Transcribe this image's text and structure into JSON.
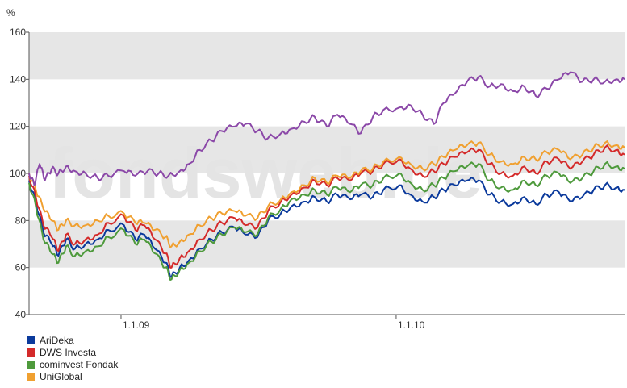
{
  "chart_data": {
    "type": "line",
    "ylabel": "%",
    "ylim": [
      40,
      160
    ],
    "yticks": [
      40,
      60,
      80,
      100,
      120,
      140,
      160
    ],
    "xlim": [
      "2008-09-01",
      "2010-10-31"
    ],
    "xticks": [
      {
        "date": "2009-01-01",
        "label": "1.1.09"
      },
      {
        "date": "2010-01-01",
        "label": "1.1.10"
      }
    ],
    "watermark": "fondsweb.de",
    "colors": {
      "grid_band": "#e6e6e6",
      "purple": "#8b48a8"
    },
    "series": [
      {
        "name": "AriDeka",
        "color": "#0b3a9c",
        "points": [
          [
            "2008-09-01",
            97
          ],
          [
            "2008-09-10",
            88
          ],
          [
            "2008-09-20",
            75
          ],
          [
            "2008-10-01",
            70
          ],
          [
            "2008-10-10",
            65
          ],
          [
            "2008-10-20",
            72
          ],
          [
            "2008-11-01",
            68
          ],
          [
            "2008-11-15",
            70
          ],
          [
            "2008-12-01",
            72
          ],
          [
            "2008-12-15",
            76
          ],
          [
            "2009-01-05",
            78
          ],
          [
            "2009-01-20",
            72
          ],
          [
            "2009-02-01",
            74
          ],
          [
            "2009-02-15",
            68
          ],
          [
            "2009-03-01",
            62
          ],
          [
            "2009-03-09",
            56
          ],
          [
            "2009-03-20",
            60
          ],
          [
            "2009-04-01",
            63
          ],
          [
            "2009-04-15",
            68
          ],
          [
            "2009-05-01",
            72
          ],
          [
            "2009-05-15",
            75
          ],
          [
            "2009-06-01",
            77
          ],
          [
            "2009-06-15",
            74
          ],
          [
            "2009-07-01",
            73
          ],
          [
            "2009-07-15",
            80
          ],
          [
            "2009-08-01",
            83
          ],
          [
            "2009-08-15",
            86
          ],
          [
            "2009-09-01",
            88
          ],
          [
            "2009-09-15",
            90
          ],
          [
            "2009-10-01",
            88
          ],
          [
            "2009-10-15",
            91
          ],
          [
            "2009-11-01",
            89
          ],
          [
            "2009-11-15",
            91
          ],
          [
            "2009-12-01",
            90
          ],
          [
            "2009-12-15",
            93
          ],
          [
            "2010-01-05",
            95
          ],
          [
            "2010-01-20",
            91
          ],
          [
            "2010-02-05",
            88
          ],
          [
            "2010-02-20",
            90
          ],
          [
            "2010-03-05",
            93
          ],
          [
            "2010-03-20",
            95
          ],
          [
            "2010-04-05",
            97
          ],
          [
            "2010-04-20",
            97
          ],
          [
            "2010-05-05",
            91
          ],
          [
            "2010-05-20",
            88
          ],
          [
            "2010-06-05",
            87
          ],
          [
            "2010-06-20",
            90
          ],
          [
            "2010-07-05",
            87
          ],
          [
            "2010-07-20",
            91
          ],
          [
            "2010-08-05",
            92
          ],
          [
            "2010-08-20",
            88
          ],
          [
            "2010-09-05",
            90
          ],
          [
            "2010-09-20",
            93
          ],
          [
            "2010-10-05",
            95
          ],
          [
            "2010-10-20",
            94
          ],
          [
            "2010-10-31",
            93
          ]
        ]
      },
      {
        "name": "DWS Investa",
        "color": "#d42a2a",
        "points": [
          [
            "2008-09-01",
            99
          ],
          [
            "2008-09-10",
            90
          ],
          [
            "2008-09-20",
            78
          ],
          [
            "2008-10-01",
            73
          ],
          [
            "2008-10-10",
            67
          ],
          [
            "2008-10-20",
            74
          ],
          [
            "2008-11-01",
            70
          ],
          [
            "2008-11-15",
            72
          ],
          [
            "2008-12-01",
            74
          ],
          [
            "2008-12-15",
            79
          ],
          [
            "2009-01-05",
            82
          ],
          [
            "2009-01-20",
            76
          ],
          [
            "2009-02-01",
            78
          ],
          [
            "2009-02-15",
            72
          ],
          [
            "2009-03-01",
            66
          ],
          [
            "2009-03-09",
            60
          ],
          [
            "2009-03-20",
            64
          ],
          [
            "2009-04-01",
            67
          ],
          [
            "2009-04-15",
            72
          ],
          [
            "2009-05-01",
            76
          ],
          [
            "2009-05-15",
            79
          ],
          [
            "2009-06-01",
            81
          ],
          [
            "2009-06-15",
            78
          ],
          [
            "2009-07-01",
            77
          ],
          [
            "2009-07-15",
            84
          ],
          [
            "2009-08-01",
            88
          ],
          [
            "2009-08-15",
            91
          ],
          [
            "2009-09-01",
            94
          ],
          [
            "2009-09-15",
            97
          ],
          [
            "2009-10-01",
            95
          ],
          [
            "2009-10-15",
            98
          ],
          [
            "2009-11-01",
            97
          ],
          [
            "2009-11-15",
            100
          ],
          [
            "2009-12-01",
            101
          ],
          [
            "2009-12-15",
            104
          ],
          [
            "2010-01-05",
            106
          ],
          [
            "2010-01-20",
            102
          ],
          [
            "2010-02-05",
            99
          ],
          [
            "2010-02-20",
            101
          ],
          [
            "2010-03-05",
            104
          ],
          [
            "2010-03-20",
            107
          ],
          [
            "2010-04-05",
            109
          ],
          [
            "2010-04-20",
            110
          ],
          [
            "2010-05-05",
            104
          ],
          [
            "2010-05-20",
            100
          ],
          [
            "2010-06-05",
            99
          ],
          [
            "2010-06-20",
            103
          ],
          [
            "2010-07-05",
            100
          ],
          [
            "2010-07-20",
            105
          ],
          [
            "2010-08-05",
            106
          ],
          [
            "2010-08-20",
            102
          ],
          [
            "2010-09-05",
            105
          ],
          [
            "2010-09-20",
            108
          ],
          [
            "2010-10-05",
            111
          ],
          [
            "2010-10-20",
            110
          ],
          [
            "2010-10-31",
            108
          ]
        ]
      },
      {
        "name": "cominvest Fondak",
        "color": "#4e9a3c",
        "points": [
          [
            "2008-09-01",
            96
          ],
          [
            "2008-09-10",
            86
          ],
          [
            "2008-09-20",
            72
          ],
          [
            "2008-10-01",
            66
          ],
          [
            "2008-10-10",
            62
          ],
          [
            "2008-10-20",
            69
          ],
          [
            "2008-11-01",
            65
          ],
          [
            "2008-11-15",
            67
          ],
          [
            "2008-12-01",
            69
          ],
          [
            "2008-12-15",
            73
          ],
          [
            "2009-01-05",
            76
          ],
          [
            "2009-01-20",
            70
          ],
          [
            "2009-02-01",
            72
          ],
          [
            "2009-02-15",
            66
          ],
          [
            "2009-03-01",
            60
          ],
          [
            "2009-03-09",
            55
          ],
          [
            "2009-03-20",
            59
          ],
          [
            "2009-04-01",
            62
          ],
          [
            "2009-04-15",
            67
          ],
          [
            "2009-05-01",
            71
          ],
          [
            "2009-05-15",
            74
          ],
          [
            "2009-06-01",
            77
          ],
          [
            "2009-06-15",
            75
          ],
          [
            "2009-07-01",
            74
          ],
          [
            "2009-07-15",
            81
          ],
          [
            "2009-08-01",
            85
          ],
          [
            "2009-08-15",
            89
          ],
          [
            "2009-09-01",
            91
          ],
          [
            "2009-09-15",
            93
          ],
          [
            "2009-10-01",
            91
          ],
          [
            "2009-10-15",
            94
          ],
          [
            "2009-11-01",
            92
          ],
          [
            "2009-11-15",
            95
          ],
          [
            "2009-12-01",
            95
          ],
          [
            "2009-12-15",
            98
          ],
          [
            "2010-01-05",
            100
          ],
          [
            "2010-01-20",
            96
          ],
          [
            "2010-02-05",
            93
          ],
          [
            "2010-02-20",
            95
          ],
          [
            "2010-03-05",
            98
          ],
          [
            "2010-03-20",
            101
          ],
          [
            "2010-04-05",
            103
          ],
          [
            "2010-04-20",
            104
          ],
          [
            "2010-05-05",
            97
          ],
          [
            "2010-05-20",
            94
          ],
          [
            "2010-06-05",
            93
          ],
          [
            "2010-06-20",
            97
          ],
          [
            "2010-07-05",
            95
          ],
          [
            "2010-07-20",
            99
          ],
          [
            "2010-08-05",
            100
          ],
          [
            "2010-08-20",
            96
          ],
          [
            "2010-09-05",
            98
          ],
          [
            "2010-09-20",
            101
          ],
          [
            "2010-10-05",
            104
          ],
          [
            "2010-10-20",
            103
          ],
          [
            "2010-10-31",
            102
          ]
        ]
      },
      {
        "name": "UniGlobal",
        "color": "#f0a030",
        "points": [
          [
            "2008-09-01",
            100
          ],
          [
            "2008-09-10",
            93
          ],
          [
            "2008-09-20",
            85
          ],
          [
            "2008-10-01",
            80
          ],
          [
            "2008-10-10",
            76
          ],
          [
            "2008-10-20",
            80
          ],
          [
            "2008-11-01",
            78
          ],
          [
            "2008-11-15",
            78
          ],
          [
            "2008-12-01",
            80
          ],
          [
            "2008-12-15",
            82
          ],
          [
            "2009-01-05",
            83
          ],
          [
            "2009-01-20",
            79
          ],
          [
            "2009-02-01",
            79
          ],
          [
            "2009-02-15",
            76
          ],
          [
            "2009-03-01",
            73
          ],
          [
            "2009-03-09",
            69
          ],
          [
            "2009-03-20",
            71
          ],
          [
            "2009-04-01",
            74
          ],
          [
            "2009-04-15",
            78
          ],
          [
            "2009-05-01",
            81
          ],
          [
            "2009-05-15",
            83
          ],
          [
            "2009-06-01",
            84
          ],
          [
            "2009-06-15",
            82
          ],
          [
            "2009-07-01",
            81
          ],
          [
            "2009-07-15",
            86
          ],
          [
            "2009-08-01",
            89
          ],
          [
            "2009-08-15",
            92
          ],
          [
            "2009-09-01",
            95
          ],
          [
            "2009-09-15",
            98
          ],
          [
            "2009-10-01",
            96
          ],
          [
            "2009-10-15",
            99
          ],
          [
            "2009-11-01",
            98
          ],
          [
            "2009-11-15",
            101
          ],
          [
            "2009-12-01",
            102
          ],
          [
            "2009-12-15",
            105
          ],
          [
            "2010-01-05",
            107
          ],
          [
            "2010-01-20",
            104
          ],
          [
            "2010-02-05",
            102
          ],
          [
            "2010-02-20",
            104
          ],
          [
            "2010-03-05",
            107
          ],
          [
            "2010-03-20",
            110
          ],
          [
            "2010-04-05",
            112
          ],
          [
            "2010-04-20",
            113
          ],
          [
            "2010-05-05",
            108
          ],
          [
            "2010-05-20",
            105
          ],
          [
            "2010-06-05",
            104
          ],
          [
            "2010-06-20",
            107
          ],
          [
            "2010-07-05",
            106
          ],
          [
            "2010-07-20",
            109
          ],
          [
            "2010-08-05",
            110
          ],
          [
            "2010-08-20",
            106
          ],
          [
            "2010-09-05",
            108
          ],
          [
            "2010-09-20",
            111
          ],
          [
            "2010-10-05",
            113
          ],
          [
            "2010-10-20",
            112
          ],
          [
            "2010-10-31",
            111
          ]
        ]
      },
      {
        "name": "",
        "color": "#8b48a8",
        "points": [
          [
            "2008-09-01",
            100
          ],
          [
            "2008-09-08",
            95
          ],
          [
            "2008-09-15",
            104
          ],
          [
            "2008-09-22",
            97
          ],
          [
            "2008-10-01",
            102
          ],
          [
            "2008-10-10",
            100
          ],
          [
            "2008-10-20",
            103
          ],
          [
            "2008-11-01",
            101
          ],
          [
            "2008-11-15",
            100
          ],
          [
            "2008-12-01",
            98
          ],
          [
            "2008-12-15",
            99
          ],
          [
            "2009-01-05",
            101
          ],
          [
            "2009-01-20",
            99
          ],
          [
            "2009-02-05",
            101
          ],
          [
            "2009-02-20",
            100
          ],
          [
            "2009-03-05",
            99
          ],
          [
            "2009-03-20",
            101
          ],
          [
            "2009-04-01",
            104
          ],
          [
            "2009-04-15",
            110
          ],
          [
            "2009-05-01",
            114
          ],
          [
            "2009-05-15",
            118
          ],
          [
            "2009-06-01",
            120
          ],
          [
            "2009-06-15",
            121
          ],
          [
            "2009-07-01",
            118
          ],
          [
            "2009-07-15",
            115
          ],
          [
            "2009-08-01",
            117
          ],
          [
            "2009-08-15",
            119
          ],
          [
            "2009-09-01",
            122
          ],
          [
            "2009-09-15",
            124
          ],
          [
            "2009-10-01",
            120
          ],
          [
            "2009-10-15",
            125
          ],
          [
            "2009-11-01",
            121
          ],
          [
            "2009-11-15",
            117
          ],
          [
            "2009-12-01",
            124
          ],
          [
            "2009-12-15",
            127
          ],
          [
            "2010-01-05",
            128
          ],
          [
            "2010-01-20",
            129
          ],
          [
            "2010-02-05",
            125
          ],
          [
            "2010-02-20",
            121
          ],
          [
            "2010-03-05",
            130
          ],
          [
            "2010-03-20",
            134
          ],
          [
            "2010-04-05",
            139
          ],
          [
            "2010-04-20",
            141
          ],
          [
            "2010-05-05",
            137
          ],
          [
            "2010-05-20",
            138
          ],
          [
            "2010-06-05",
            135
          ],
          [
            "2010-06-20",
            137
          ],
          [
            "2010-07-05",
            133
          ],
          [
            "2010-07-20",
            136
          ],
          [
            "2010-08-05",
            140
          ],
          [
            "2010-08-20",
            143
          ],
          [
            "2010-09-05",
            139
          ],
          [
            "2010-09-20",
            140
          ],
          [
            "2010-10-05",
            139
          ],
          [
            "2010-10-20",
            140
          ],
          [
            "2010-10-31",
            140
          ]
        ]
      }
    ],
    "legend": [
      {
        "label": "AriDeka",
        "color": "#0b3a9c"
      },
      {
        "label": "DWS Investa",
        "color": "#d42a2a"
      },
      {
        "label": "cominvest Fondak",
        "color": "#4e9a3c"
      },
      {
        "label": "UniGlobal",
        "color": "#f0a030"
      }
    ]
  }
}
